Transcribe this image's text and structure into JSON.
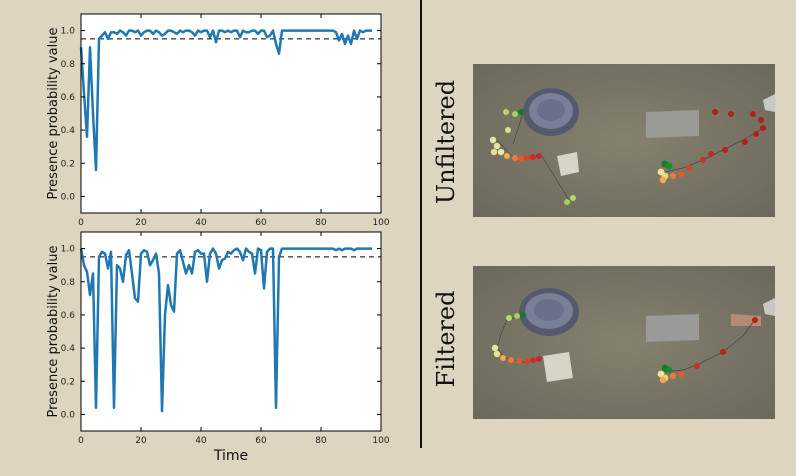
{
  "chart_data": [
    {
      "type": "line",
      "title": "",
      "xlabel": "",
      "ylabel": "Presence probability value",
      "xlim": [
        0,
        100
      ],
      "ylim": [
        -0.1,
        1.1
      ],
      "xticks": [
        0,
        20,
        40,
        60,
        80,
        100
      ],
      "yticks": [
        "0.0",
        "0.2",
        "0.4",
        "0.6",
        "0.8",
        "1.0"
      ],
      "threshold": 0.95,
      "line_color": "#1f77b4",
      "series": [
        {
          "x": [
            0,
            1,
            2,
            3,
            4,
            5,
            6,
            7,
            8,
            9,
            10,
            11,
            12,
            13,
            14,
            15,
            16,
            17,
            18,
            19,
            20,
            21,
            22,
            23,
            24,
            25,
            26,
            27,
            28,
            29,
            30,
            31,
            32,
            33,
            34,
            35,
            36,
            37,
            38,
            39,
            40,
            41,
            42,
            43,
            44,
            45,
            46,
            47,
            48,
            49,
            50,
            51,
            52,
            53,
            54,
            55,
            56,
            57,
            58,
            59,
            60,
            61,
            62,
            63,
            64,
            65,
            66,
            67,
            68,
            69,
            70,
            71,
            72,
            73,
            74,
            75,
            76,
            77,
            78,
            79,
            80,
            81,
            82,
            83,
            84,
            85,
            86,
            87,
            88,
            89,
            90,
            91,
            92,
            93,
            94,
            95,
            96,
            97
          ],
          "y": [
            0.9,
            0.62,
            0.36,
            0.9,
            0.5,
            0.16,
            0.95,
            0.97,
            0.99,
            0.95,
            0.99,
            0.99,
            0.98,
            1.0,
            0.99,
            0.97,
            1.0,
            1.0,
            0.99,
            1.0,
            0.97,
            0.99,
            1.0,
            1.0,
            0.98,
            1.0,
            0.99,
            0.97,
            0.98,
            1.0,
            1.0,
            0.99,
            0.98,
            1.0,
            0.99,
            1.0,
            1.0,
            0.99,
            0.97,
            1.0,
            0.99,
            1.0,
            1.0,
            0.96,
            1.0,
            0.93,
            1.0,
            1.0,
            0.99,
            1.0,
            0.99,
            1.0,
            1.0,
            0.96,
            1.0,
            0.99,
            0.99,
            1.0,
            1.0,
            0.98,
            1.0,
            1.0,
            0.96,
            0.97,
            1.0,
            0.92,
            0.86,
            1.0,
            1.0,
            1.0,
            1.0,
            1.0,
            1.0,
            1.0,
            1.0,
            1.0,
            1.0,
            1.0,
            1.0,
            1.0,
            1.0,
            1.0,
            1.0,
            1.0,
            1.0,
            0.99,
            0.94,
            0.98,
            0.92,
            0.97,
            0.92,
            1.0,
            0.95,
            1.0,
            0.99,
            1.0,
            1.0,
            1.0
          ]
        }
      ]
    },
    {
      "type": "line",
      "title": "",
      "xlabel": "Time",
      "ylabel": "Presence probability value",
      "xlim": [
        0,
        100
      ],
      "ylim": [
        -0.1,
        1.1
      ],
      "xticks": [
        0,
        20,
        40,
        60,
        80,
        100
      ],
      "yticks": [
        "0.0",
        "0.2",
        "0.4",
        "0.6",
        "0.8",
        "1.0"
      ],
      "threshold": 0.95,
      "line_color": "#1f77b4",
      "series": [
        {
          "x": [
            0,
            1,
            2,
            3,
            4,
            5,
            6,
            7,
            8,
            9,
            10,
            11,
            12,
            13,
            14,
            15,
            16,
            17,
            18,
            19,
            20,
            21,
            22,
            23,
            24,
            25,
            26,
            27,
            28,
            29,
            30,
            31,
            32,
            33,
            34,
            35,
            36,
            37,
            38,
            39,
            40,
            41,
            42,
            43,
            44,
            45,
            46,
            47,
            48,
            49,
            50,
            51,
            52,
            53,
            54,
            55,
            56,
            57,
            58,
            59,
            60,
            61,
            62,
            63,
            64,
            65,
            66,
            67,
            68,
            69,
            70,
            71,
            72,
            73,
            74,
            75,
            76,
            77,
            78,
            79,
            80,
            81,
            82,
            83,
            84,
            85,
            86,
            87,
            88,
            89,
            90,
            91,
            92,
            93,
            94,
            95,
            96,
            97
          ],
          "y": [
            1.0,
            0.9,
            0.86,
            0.72,
            0.85,
            0.04,
            0.95,
            0.98,
            0.97,
            0.88,
            0.98,
            0.04,
            0.9,
            0.88,
            0.8,
            0.96,
            0.99,
            0.85,
            0.7,
            0.68,
            0.97,
            0.99,
            0.98,
            0.9,
            0.93,
            0.97,
            0.85,
            0.02,
            0.6,
            0.78,
            0.66,
            0.62,
            0.97,
            0.99,
            0.92,
            0.85,
            0.9,
            0.85,
            0.98,
            0.99,
            0.97,
            0.97,
            0.8,
            0.97,
            1.0,
            0.97,
            0.88,
            0.93,
            0.94,
            0.98,
            0.97,
            0.99,
            1.0,
            0.98,
            0.93,
            1.0,
            0.98,
            0.97,
            0.85,
            1.0,
            0.99,
            0.76,
            0.98,
            1.0,
            1.0,
            0.04,
            0.95,
            1.0,
            1.0,
            1.0,
            1.0,
            1.0,
            1.0,
            1.0,
            1.0,
            1.0,
            1.0,
            1.0,
            1.0,
            1.0,
            1.0,
            1.0,
            1.0,
            1.0,
            1.0,
            0.99,
            1.0,
            0.99,
            1.0,
            1.0,
            1.0,
            0.99,
            1.0,
            1.0,
            1.0,
            1.0,
            1.0,
            1.0
          ]
        }
      ]
    }
  ],
  "photos": [
    {
      "label": "Unfiltered"
    },
    {
      "label": "Filtered"
    }
  ]
}
